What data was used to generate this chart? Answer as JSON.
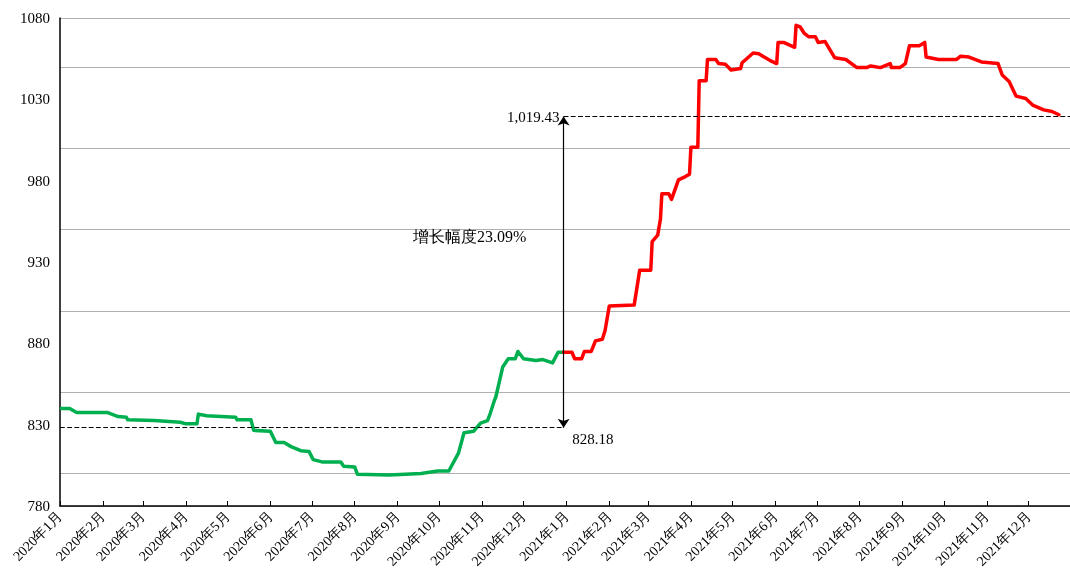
{
  "chart_data": {
    "type": "line",
    "xlim": [
      "2020-01-01",
      "2021-12-31"
    ],
    "xticks": [
      {
        "value": "2020-01-01",
        "label": "2020年1月"
      },
      {
        "value": "2020-02-01",
        "label": "2020年2月"
      },
      {
        "value": "2020-03-01",
        "label": "2020年3月"
      },
      {
        "value": "2020-04-01",
        "label": "2020年4月"
      },
      {
        "value": "2020-05-01",
        "label": "2020年5月"
      },
      {
        "value": "2020-06-01",
        "label": "2020年6月"
      },
      {
        "value": "2020-07-01",
        "label": "2020年7月"
      },
      {
        "value": "2020-08-01",
        "label": "2020年8月"
      },
      {
        "value": "2020-09-01",
        "label": "2020年9月"
      },
      {
        "value": "2020-10-01",
        "label": "2020年10月"
      },
      {
        "value": "2020-11-01",
        "label": "2020年11月"
      },
      {
        "value": "2020-12-01",
        "label": "2020年12月"
      },
      {
        "value": "2021-01-01",
        "label": "2021年1月"
      },
      {
        "value": "2021-02-01",
        "label": "2021年2月"
      },
      {
        "value": "2021-03-01",
        "label": "2021年3月"
      },
      {
        "value": "2021-04-01",
        "label": "2021年4月"
      },
      {
        "value": "2021-05-01",
        "label": "2021年5月"
      },
      {
        "value": "2021-06-01",
        "label": "2021年6月"
      },
      {
        "value": "2021-07-01",
        "label": "2021年7月"
      },
      {
        "value": "2021-08-01",
        "label": "2021年8月"
      },
      {
        "value": "2021-09-01",
        "label": "2021年9月"
      },
      {
        "value": "2021-10-01",
        "label": "2021年10月"
      },
      {
        "value": "2021-11-01",
        "label": "2021年11月"
      },
      {
        "value": "2021-12-01",
        "label": "2021年12月"
      }
    ],
    "ylim": [
      780,
      1080
    ],
    "yticks": [
      780,
      830,
      880,
      930,
      980,
      1030,
      1080
    ],
    "grid": "y",
    "marker": "none",
    "line_style": "solid",
    "series": [
      {
        "color": "#00b050",
        "x": [
          "2020-01-02",
          "2020-01-08",
          "2020-01-13",
          "2020-02-04",
          "2020-02-12",
          "2020-02-18",
          "2020-02-19",
          "2020-03-09",
          "2020-03-28",
          "2020-04-01",
          "2020-04-09",
          "2020-04-10",
          "2020-04-16",
          "2020-05-07",
          "2020-05-08",
          "2020-05-18",
          "2020-05-20",
          "2020-06-01",
          "2020-06-05",
          "2020-06-11",
          "2020-06-16",
          "2020-06-23",
          "2020-06-29",
          "2020-07-02",
          "2020-07-09",
          "2020-07-22",
          "2020-07-24",
          "2020-08-01",
          "2020-08-03",
          "2020-08-26",
          "2020-09-18",
          "2020-09-30",
          "2020-10-08",
          "2020-10-15",
          "2020-10-19",
          "2020-10-26",
          "2020-10-31",
          "2020-11-05",
          "2020-11-07",
          "2020-11-10",
          "2020-11-11",
          "2020-11-16",
          "2020-11-20",
          "2020-11-25",
          "2020-11-27",
          "2020-12-01",
          "2020-12-10",
          "2020-12-15",
          "2020-12-22",
          "2020-12-26",
          "2020-12-30"
        ],
        "values": [
          840,
          840,
          837.5,
          837.5,
          835,
          834.5,
          833,
          832.5,
          831.5,
          830.5,
          830.5,
          836.5,
          835.5,
          834.5,
          833,
          833,
          826.5,
          826,
          819,
          819,
          816.5,
          814,
          813.5,
          808.5,
          807,
          807,
          804.5,
          804,
          799.5,
          799,
          800,
          801.5,
          801.5,
          812.5,
          825,
          826,
          831,
          832.5,
          837,
          845,
          847,
          865.5,
          870.5,
          870.5,
          875,
          870.5,
          869.5,
          870,
          868,
          874.5,
          874.5
        ]
      },
      {
        "color": "#ff0000",
        "x": [
          "2020-12-30",
          "2021-01-05",
          "2021-01-07",
          "2021-01-12",
          "2021-01-14",
          "2021-01-19",
          "2021-01-22",
          "2021-01-27",
          "2021-01-29",
          "2021-02-01",
          "2021-02-19",
          "2021-02-23",
          "2021-03-03",
          "2021-03-04",
          "2021-03-08",
          "2021-03-10",
          "2021-03-11",
          "2021-03-16",
          "2021-03-18",
          "2021-03-23",
          "2021-03-28",
          "2021-03-31",
          "2021-04-01",
          "2021-04-06",
          "2021-04-07",
          "2021-04-12",
          "2021-04-13",
          "2021-04-19",
          "2021-04-21",
          "2021-04-26",
          "2021-04-30",
          "2021-05-07",
          "2021-05-08",
          "2021-05-16",
          "2021-05-20",
          "2021-05-28",
          "2021-06-02",
          "2021-06-03",
          "2021-06-07",
          "2021-06-15",
          "2021-06-16",
          "2021-06-19",
          "2021-06-22",
          "2021-06-25",
          "2021-06-30",
          "2021-07-02",
          "2021-07-07",
          "2021-07-14",
          "2021-07-22",
          "2021-07-30",
          "2021-08-06",
          "2021-08-09",
          "2021-08-16",
          "2021-08-23",
          "2021-08-24",
          "2021-08-30",
          "2021-09-03",
          "2021-09-06",
          "2021-09-13",
          "2021-09-17",
          "2021-09-18",
          "2021-09-27",
          "2021-10-10",
          "2021-10-13",
          "2021-10-19",
          "2021-10-28",
          "2021-11-09",
          "2021-11-12",
          "2021-11-17",
          "2021-11-22",
          "2021-11-29",
          "2021-12-04",
          "2021-12-12",
          "2021-12-18",
          "2021-12-23"
        ],
        "values": [
          874.5,
          874.5,
          870.5,
          870.5,
          875,
          875,
          881.5,
          882.5,
          888,
          903,
          903.5,
          925,
          925,
          942.5,
          946.5,
          956.5,
          972,
          972,
          968.5,
          980.5,
          982.5,
          984,
          1000.5,
          1000.5,
          1041.5,
          1041.5,
          1054.5,
          1054.5,
          1052,
          1051.5,
          1048,
          1049,
          1052.5,
          1058.5,
          1058,
          1054,
          1052,
          1065,
          1065,
          1062,
          1075.5,
          1074.5,
          1070.5,
          1068.5,
          1068.5,
          1065,
          1065.5,
          1055.5,
          1054.5,
          1049.5,
          1049.5,
          1050.5,
          1049.5,
          1052,
          1049.5,
          1049.5,
          1052,
          1063,
          1063,
          1065,
          1056,
          1054.5,
          1054.5,
          1056.5,
          1056,
          1053,
          1052,
          1045,
          1041,
          1032,
          1030.5,
          1026.5,
          1023.5,
          1022.5,
          1020.5
        ]
      }
    ],
    "ref_lines": [
      {
        "axis": "y",
        "value": 828.18,
        "label": "828.18",
        "color": "#000000",
        "line_style": "dashed"
      },
      {
        "axis": "y",
        "value": 1019.43,
        "label": "1,019.43",
        "color": "#000000",
        "line_style": "dashed"
      }
    ],
    "annotations": [
      "增长幅度23.09%"
    ]
  }
}
